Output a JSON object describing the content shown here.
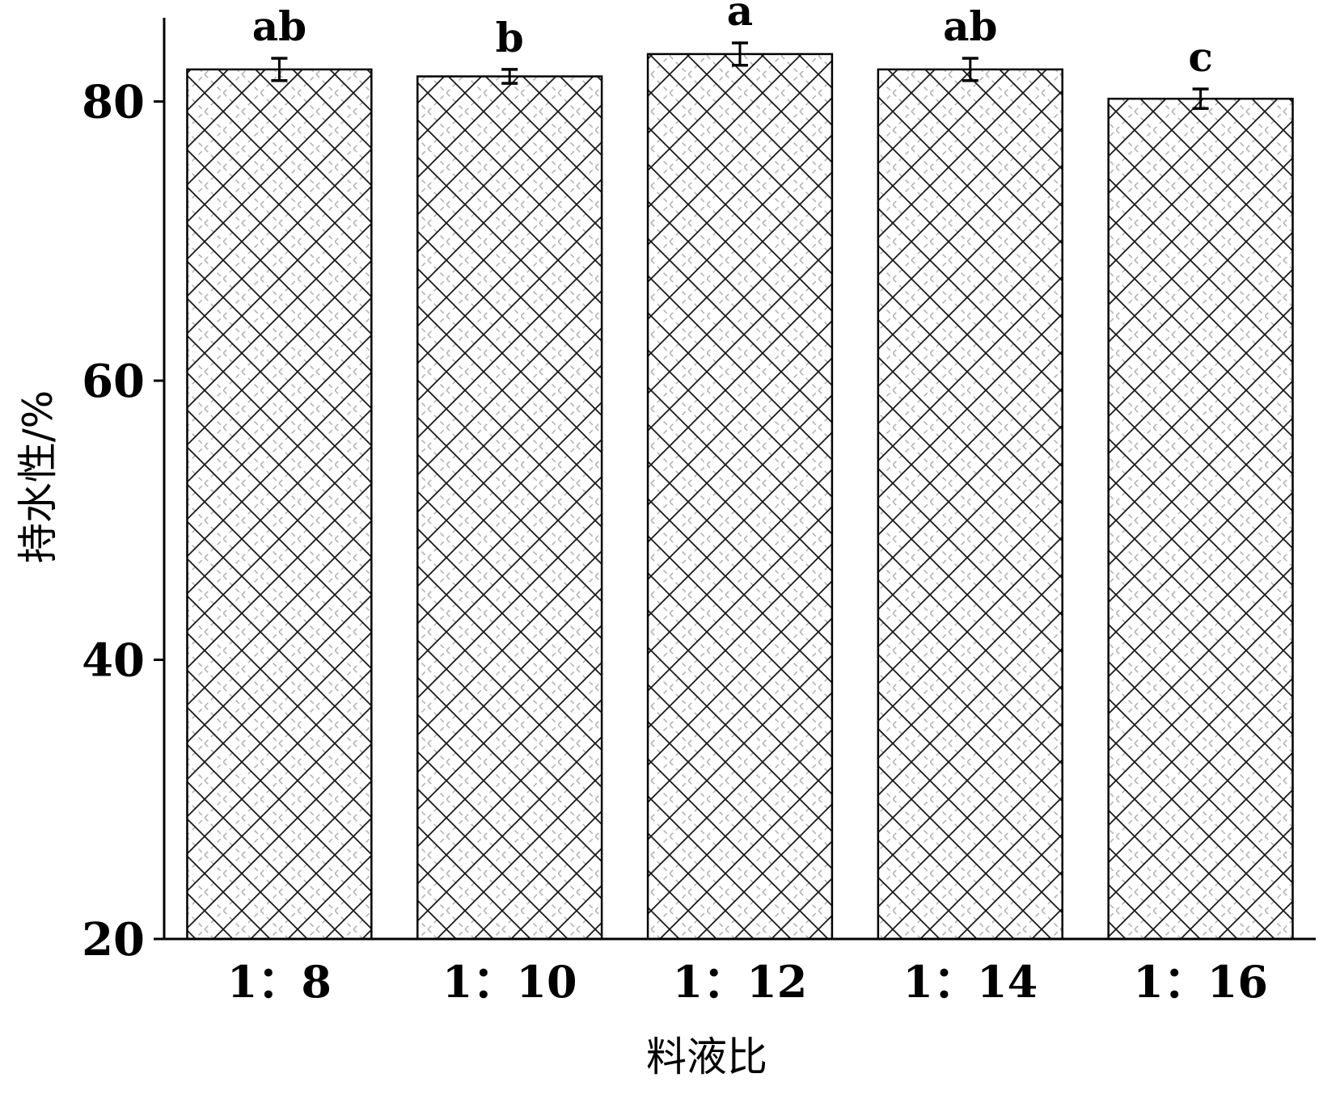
{
  "chart_data": {
    "type": "bar",
    "categories": [
      "1：8",
      "1：10",
      "1：12",
      "1：14",
      "1：16"
    ],
    "values": [
      82.3,
      81.8,
      83.4,
      82.3,
      80.2
    ],
    "errors": [
      0.8,
      0.5,
      0.8,
      0.8,
      0.7
    ],
    "significance": [
      "ab",
      "b",
      "a",
      "ab",
      "c"
    ],
    "xlabel": "料液比",
    "ylabel": "持水性/%",
    "ylim": [
      20,
      86
    ],
    "yticks": [
      20,
      40,
      60,
      80
    ],
    "grid": false,
    "bar_pattern": "crosshatch",
    "colors": {
      "bar_fill": "#ffffff",
      "hatch_dark": "#1a1a1a",
      "hatch_light": "#b4b4b4",
      "axis": "#000000"
    }
  }
}
